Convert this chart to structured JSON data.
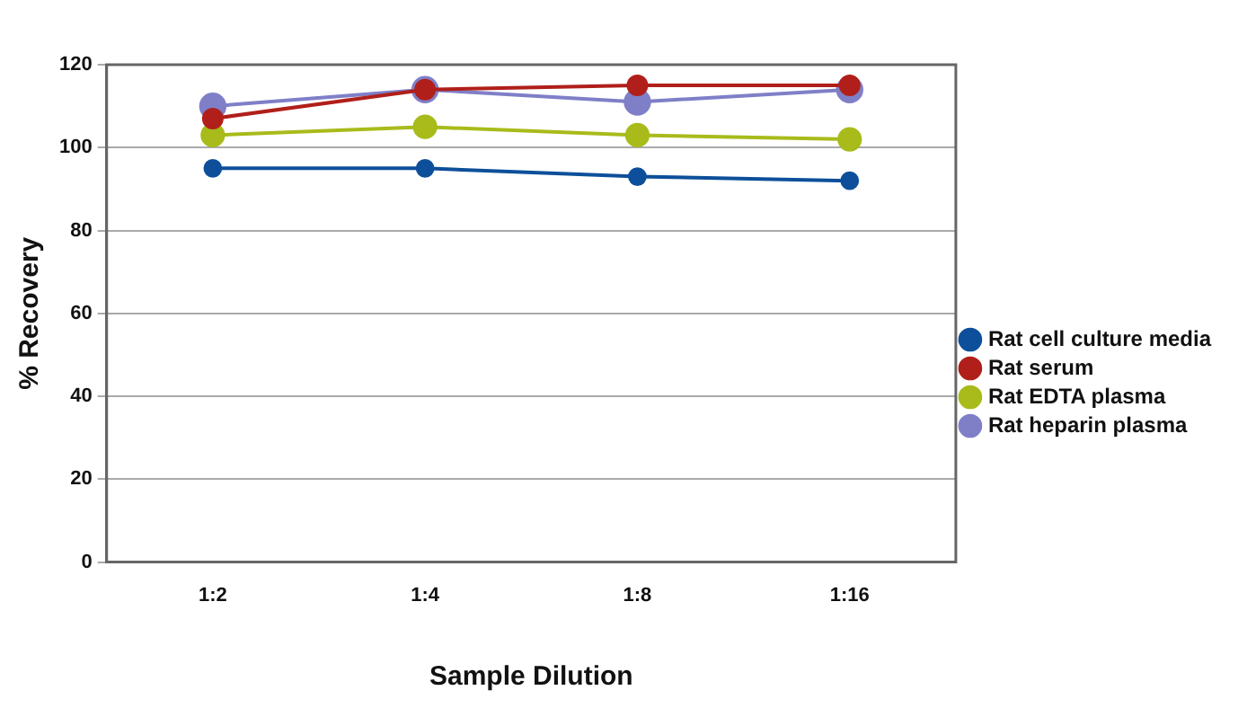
{
  "chart_data": {
    "type": "line",
    "xlabel": "Sample Dilution",
    "ylabel": "% Recovery",
    "categories": [
      "1:2",
      "1:4",
      "1:8",
      "1:16"
    ],
    "series": [
      {
        "name": "Rat cell culture media",
        "color": "#0d4f9a",
        "values": [
          95,
          95,
          93,
          92
        ]
      },
      {
        "name": "Rat serum",
        "color": "#b01f1a",
        "values": [
          107,
          114,
          115,
          115
        ]
      },
      {
        "name": "Rat EDTA plasma",
        "color": "#a8bb1a",
        "values": [
          103,
          105,
          103,
          102
        ]
      },
      {
        "name": "Rat heparin plasma",
        "color": "#7f7fc8",
        "values": [
          110,
          114,
          111,
          114
        ]
      }
    ],
    "ylim": [
      0,
      120
    ],
    "yticks": [
      0,
      20,
      40,
      60,
      80,
      100,
      120
    ],
    "grid": "y",
    "legend": "right",
    "marker": "circle"
  }
}
